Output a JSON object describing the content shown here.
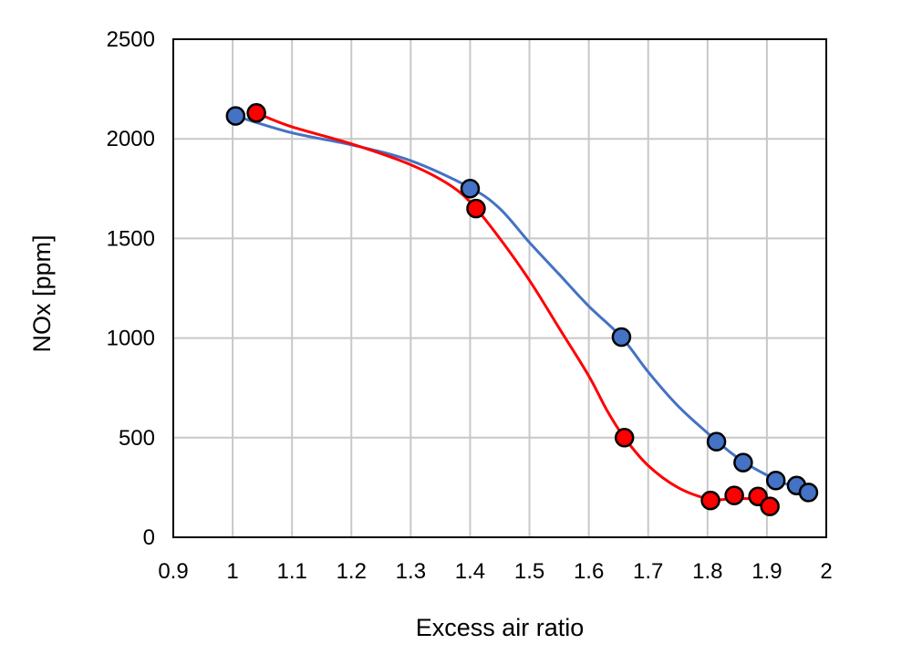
{
  "chart_data": {
    "type": "scatter",
    "xlabel": "Excess air ratio",
    "ylabel": "NOx [ppm]",
    "xlim": [
      0.9,
      2.0
    ],
    "ylim": [
      0,
      2500
    ],
    "x_ticks": [
      "0.9",
      "1",
      "1.1",
      "1.2",
      "1.3",
      "1.4",
      "1.5",
      "1.6",
      "1.7",
      "1.8",
      "1.9",
      "2"
    ],
    "y_ticks": [
      "0",
      "500",
      "1000",
      "1500",
      "2000",
      "2500"
    ],
    "grid": true,
    "legend": false,
    "series": [
      {
        "color": "#4472c4",
        "marker_color": "#4472c4",
        "points": [
          {
            "x": 1.005,
            "y": 2115
          },
          {
            "x": 1.4,
            "y": 1750
          },
          {
            "x": 1.655,
            "y": 1005
          },
          {
            "x": 1.815,
            "y": 480
          },
          {
            "x": 1.86,
            "y": 375
          },
          {
            "x": 1.915,
            "y": 285
          },
          {
            "x": 1.95,
            "y": 260
          },
          {
            "x": 1.97,
            "y": 225
          }
        ],
        "trend": [
          {
            "x": 1.005,
            "y": 2115
          },
          {
            "x": 1.1,
            "y": 2030
          },
          {
            "x": 1.2,
            "y": 1970
          },
          {
            "x": 1.3,
            "y": 1890
          },
          {
            "x": 1.4,
            "y": 1755
          },
          {
            "x": 1.45,
            "y": 1650
          },
          {
            "x": 1.5,
            "y": 1480
          },
          {
            "x": 1.55,
            "y": 1320
          },
          {
            "x": 1.6,
            "y": 1160
          },
          {
            "x": 1.655,
            "y": 1005
          },
          {
            "x": 1.7,
            "y": 830
          },
          {
            "x": 1.75,
            "y": 660
          },
          {
            "x": 1.815,
            "y": 485
          },
          {
            "x": 1.86,
            "y": 380
          },
          {
            "x": 1.915,
            "y": 290
          },
          {
            "x": 1.97,
            "y": 225
          }
        ]
      },
      {
        "color": "#ff0000",
        "marker_color": "#ff0000",
        "points": [
          {
            "x": 1.04,
            "y": 2130
          },
          {
            "x": 1.41,
            "y": 1650
          },
          {
            "x": 1.66,
            "y": 500
          },
          {
            "x": 1.805,
            "y": 185
          },
          {
            "x": 1.845,
            "y": 210
          },
          {
            "x": 1.885,
            "y": 205
          },
          {
            "x": 1.905,
            "y": 155
          }
        ],
        "trend": [
          {
            "x": 1.04,
            "y": 2130
          },
          {
            "x": 1.1,
            "y": 2060
          },
          {
            "x": 1.2,
            "y": 1975
          },
          {
            "x": 1.3,
            "y": 1870
          },
          {
            "x": 1.37,
            "y": 1760
          },
          {
            "x": 1.41,
            "y": 1650
          },
          {
            "x": 1.45,
            "y": 1500
          },
          {
            "x": 1.5,
            "y": 1290
          },
          {
            "x": 1.55,
            "y": 1050
          },
          {
            "x": 1.6,
            "y": 810
          },
          {
            "x": 1.63,
            "y": 640
          },
          {
            "x": 1.66,
            "y": 500
          },
          {
            "x": 1.7,
            "y": 360
          },
          {
            "x": 1.75,
            "y": 250
          },
          {
            "x": 1.805,
            "y": 190
          },
          {
            "x": 1.845,
            "y": 195
          },
          {
            "x": 1.885,
            "y": 190
          },
          {
            "x": 1.905,
            "y": 170
          }
        ]
      }
    ]
  }
}
